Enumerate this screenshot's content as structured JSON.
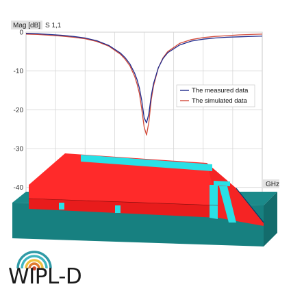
{
  "chart_data": {
    "type": "line",
    "title": "S 1,1",
    "ylabel": "Mag [dB]",
    "xlabel": "GHz",
    "ylim": [
      -42,
      0
    ],
    "yticks": [
      0,
      -10,
      -20,
      -30,
      -40
    ],
    "x": [
      0,
      5,
      10,
      15,
      20,
      25,
      30,
      35,
      40,
      42,
      44,
      46,
      47,
      48,
      49,
      50,
      51,
      52,
      53,
      54,
      56,
      58,
      60,
      65,
      70,
      75,
      80,
      85,
      90,
      95,
      100
    ],
    "series": [
      {
        "name": "The measured data",
        "color": "#1f2a8c",
        "values": [
          -0.3,
          -0.4,
          -0.6,
          -0.8,
          -1.1,
          -1.5,
          -2.2,
          -3.4,
          -5.4,
          -6.6,
          -8.2,
          -10.6,
          -12.2,
          -14.4,
          -17.6,
          -22.0,
          -23.4,
          -21.0,
          -16.4,
          -13.2,
          -9.2,
          -6.8,
          -5.3,
          -3.3,
          -2.3,
          -1.8,
          -1.5,
          -1.3,
          -1.2,
          -1.1,
          -1.0
        ]
      },
      {
        "name": "The simulated data",
        "color": "#d24a3a",
        "values": [
          -0.5,
          -0.6,
          -0.8,
          -1.0,
          -1.3,
          -1.7,
          -2.4,
          -3.6,
          -5.7,
          -7.0,
          -8.7,
          -11.4,
          -13.3,
          -15.8,
          -19.8,
          -24.4,
          -26.5,
          -23.2,
          -17.4,
          -13.8,
          -9.2,
          -6.6,
          -5.0,
          -2.9,
          -1.9,
          -1.4,
          -1.1,
          -0.9,
          -0.7,
          -0.6,
          -0.5
        ]
      }
    ],
    "grid": true,
    "legend_position": "right"
  },
  "logo": {
    "text": "WIPL-D",
    "colors": [
      "#2f9aa6",
      "#3fb6c0",
      "#f0c040",
      "#e07a2e",
      "#c8452c"
    ]
  },
  "model_colors": {
    "base": "#1b8a8a",
    "top": "#ff2a2a",
    "strips": "#29e0e6"
  }
}
